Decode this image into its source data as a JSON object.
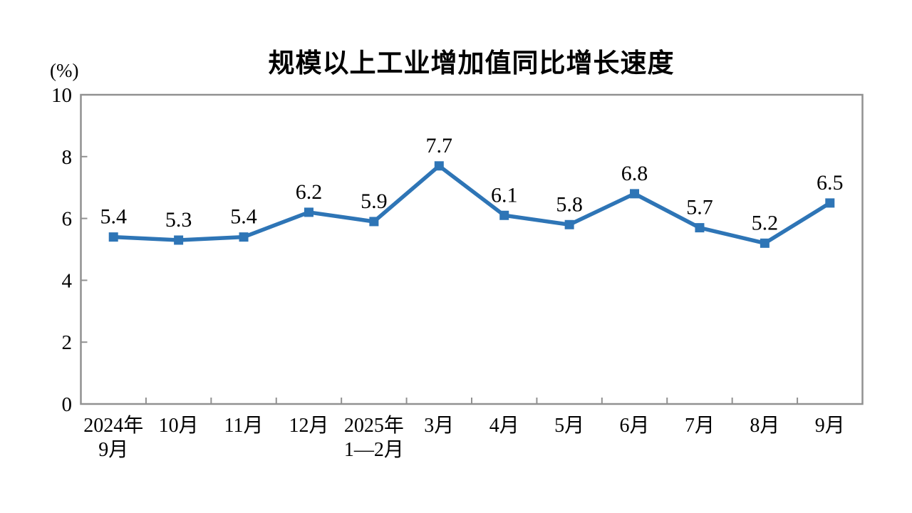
{
  "chart": {
    "title": "规模以上工业增加值同比增长速度",
    "unit_label": "(%)"
  },
  "chart_data": {
    "type": "line",
    "title": "规模以上工业增加值同比增长速度",
    "ylabel": "(%)",
    "xlabel": "",
    "categories": [
      "2024年\n9月",
      "10月",
      "11月",
      "12月",
      "2025年\n1—2月",
      "3月",
      "4月",
      "5月",
      "6月",
      "7月",
      "8月",
      "9月"
    ],
    "values": [
      5.4,
      5.3,
      5.4,
      6.2,
      5.9,
      7.7,
      6.1,
      5.8,
      6.8,
      5.7,
      5.2,
      6.5
    ],
    "data_labels": [
      "5.4",
      "5.3",
      "5.4",
      "6.2",
      "5.9",
      "7.7",
      "6.1",
      "5.8",
      "6.8",
      "5.7",
      "5.2",
      "6.5"
    ],
    "ylim": [
      0,
      10
    ],
    "yticks": [
      0,
      2,
      4,
      6,
      8,
      10
    ],
    "grid": false,
    "legend_position": "none",
    "marker": "square",
    "line_color": "#2E75B6",
    "border_color": "#919191",
    "text_color": "#000000",
    "background_color": "#FFFFFF"
  }
}
